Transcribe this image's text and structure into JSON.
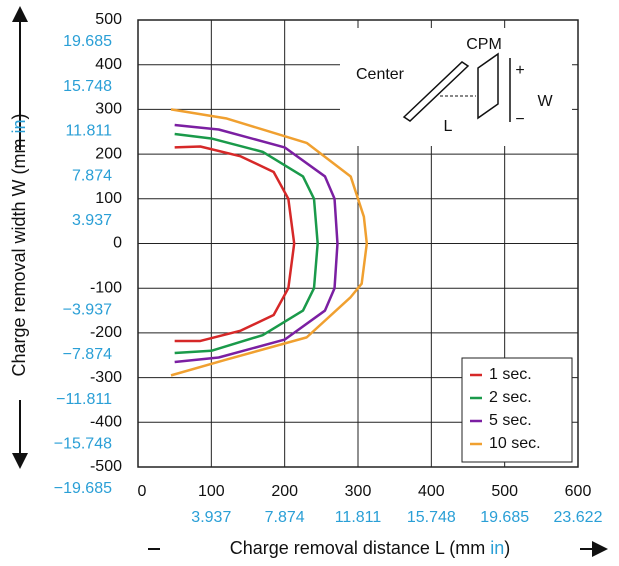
{
  "chart_data": {
    "type": "line",
    "xlabel": {
      "text": "Charge removal distance L (mm",
      "unit": "in",
      "close": ")"
    },
    "ylabel": {
      "text": "Charge removal width W (mm",
      "unit": "in",
      "close": ")"
    },
    "xlim": [
      0,
      600
    ],
    "ylim": [
      -500,
      500
    ],
    "xticks": [
      0,
      100,
      200,
      300,
      400,
      500,
      600
    ],
    "yticks": [
      500,
      400,
      300,
      200,
      100,
      0,
      -100,
      -200,
      -300,
      -400,
      -500
    ],
    "x2ticks": [
      {
        "value": 100,
        "label": "3.937"
      },
      {
        "value": 200,
        "label": "7.874"
      },
      {
        "value": 300,
        "label": "11.811"
      },
      {
        "value": 400,
        "label": "15.748"
      },
      {
        "value": 500,
        "label": "19.685"
      },
      {
        "value": 600,
        "label": "23.622"
      }
    ],
    "y2ticks": [
      {
        "value": 500,
        "label": "19.685"
      },
      {
        "value": 400,
        "label": "15.748"
      },
      {
        "value": 300,
        "label": "11.811"
      },
      {
        "value": 200,
        "label": "7.874"
      },
      {
        "value": 100,
        "label": "3.937"
      },
      {
        "value": -100,
        "label": "−3.937"
      },
      {
        "value": -200,
        "label": "−7.874"
      },
      {
        "value": -300,
        "label": "−11.811"
      },
      {
        "value": -400,
        "label": "−15.748"
      },
      {
        "value": -500,
        "label": "−19.685"
      }
    ],
    "grid": true,
    "legend": "lower right",
    "series": [
      {
        "name": "1 sec.",
        "color": "#d62828",
        "x": [
          50,
          85,
          140,
          185,
          205,
          213,
          205,
          185,
          140,
          85,
          50
        ],
        "values": [
          215,
          217,
          195,
          160,
          100,
          0,
          -100,
          -160,
          -195,
          -218,
          -218
        ]
      },
      {
        "name": "2 sec.",
        "color": "#1a9a4a",
        "x": [
          50,
          100,
          170,
          225,
          240,
          245,
          240,
          225,
          170,
          100,
          50
        ],
        "values": [
          245,
          235,
          205,
          150,
          100,
          0,
          -100,
          -150,
          -205,
          -240,
          -245
        ]
      },
      {
        "name": "5 sec.",
        "color": "#7b1fa2",
        "x": [
          50,
          110,
          200,
          255,
          268,
          272,
          268,
          255,
          200,
          110,
          50
        ],
        "values": [
          265,
          255,
          215,
          150,
          100,
          0,
          -100,
          -150,
          -215,
          -255,
          -265
        ]
      },
      {
        "name": "10 sec.",
        "color": "#f0a030",
        "x": [
          45,
          120,
          230,
          290,
          308,
          312,
          305,
          290,
          230,
          120,
          45
        ],
        "values": [
          300,
          280,
          225,
          150,
          60,
          0,
          -90,
          -120,
          -210,
          -260,
          -295
        ]
      }
    ],
    "annotations": [
      "CPM",
      "Center",
      "L",
      "W",
      "+",
      "−"
    ]
  }
}
